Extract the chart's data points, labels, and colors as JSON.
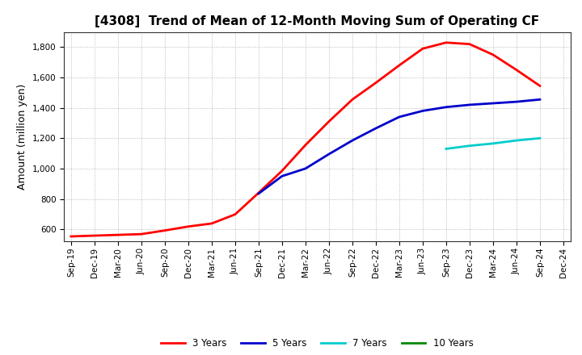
{
  "title": "[4308]  Trend of Mean of 12-Month Moving Sum of Operating CF",
  "ylabel": "Amount (million yen)",
  "bg_color": "#FFFFFF",
  "plot_bg_color": "#FFFFFF",
  "grid_color": "#AAAAAA",
  "ylim": [
    520,
    1900
  ],
  "yticks": [
    600,
    800,
    1000,
    1200,
    1400,
    1600,
    1800
  ],
  "series": {
    "3years": {
      "color": "#FF0000",
      "label": "3 Years",
      "dates": [
        "Sep-19",
        "Dec-19",
        "Mar-20",
        "Jun-20",
        "Sep-20",
        "Dec-20",
        "Mar-21",
        "Jun-21",
        "Sep-21",
        "Dec-21",
        "Mar-22",
        "Jun-22",
        "Sep-22",
        "Dec-22",
        "Mar-23",
        "Jun-23",
        "Sep-23",
        "Dec-23",
        "Mar-24",
        "Jun-24",
        "Sep-24"
      ],
      "values": [
        553,
        558,
        563,
        568,
        592,
        618,
        638,
        698,
        840,
        985,
        1155,
        1310,
        1455,
        1565,
        1680,
        1790,
        1830,
        1820,
        1750,
        1650,
        1545
      ]
    },
    "5years": {
      "color": "#0000CC",
      "label": "5 Years",
      "dates": [
        "Sep-21",
        "Dec-21",
        "Mar-22",
        "Jun-22",
        "Sep-22",
        "Dec-22",
        "Mar-23",
        "Jun-23",
        "Sep-23",
        "Dec-23",
        "Mar-24",
        "Jun-24",
        "Sep-24"
      ],
      "values": [
        835,
        950,
        1000,
        1095,
        1185,
        1265,
        1340,
        1380,
        1405,
        1420,
        1430,
        1440,
        1455
      ]
    },
    "7years": {
      "color": "#00CCCC",
      "label": "7 Years",
      "dates": [
        "Sep-23",
        "Dec-23",
        "Mar-24",
        "Jun-24",
        "Sep-24"
      ],
      "values": [
        1130,
        1150,
        1165,
        1185,
        1200
      ]
    },
    "10years": {
      "color": "#008800",
      "label": "10 Years",
      "dates": [],
      "values": []
    }
  },
  "xticks": [
    "Sep-19",
    "Dec-19",
    "Mar-20",
    "Jun-20",
    "Sep-20",
    "Dec-20",
    "Mar-21",
    "Jun-21",
    "Sep-21",
    "Dec-21",
    "Mar-22",
    "Jun-22",
    "Sep-22",
    "Dec-22",
    "Mar-23",
    "Jun-23",
    "Sep-23",
    "Dec-23",
    "Mar-24",
    "Jun-24",
    "Sep-24",
    "Dec-24"
  ],
  "title_fontsize": 11,
  "tick_fontsize": 7.5,
  "ylabel_fontsize": 9,
  "linewidth": 2.0
}
